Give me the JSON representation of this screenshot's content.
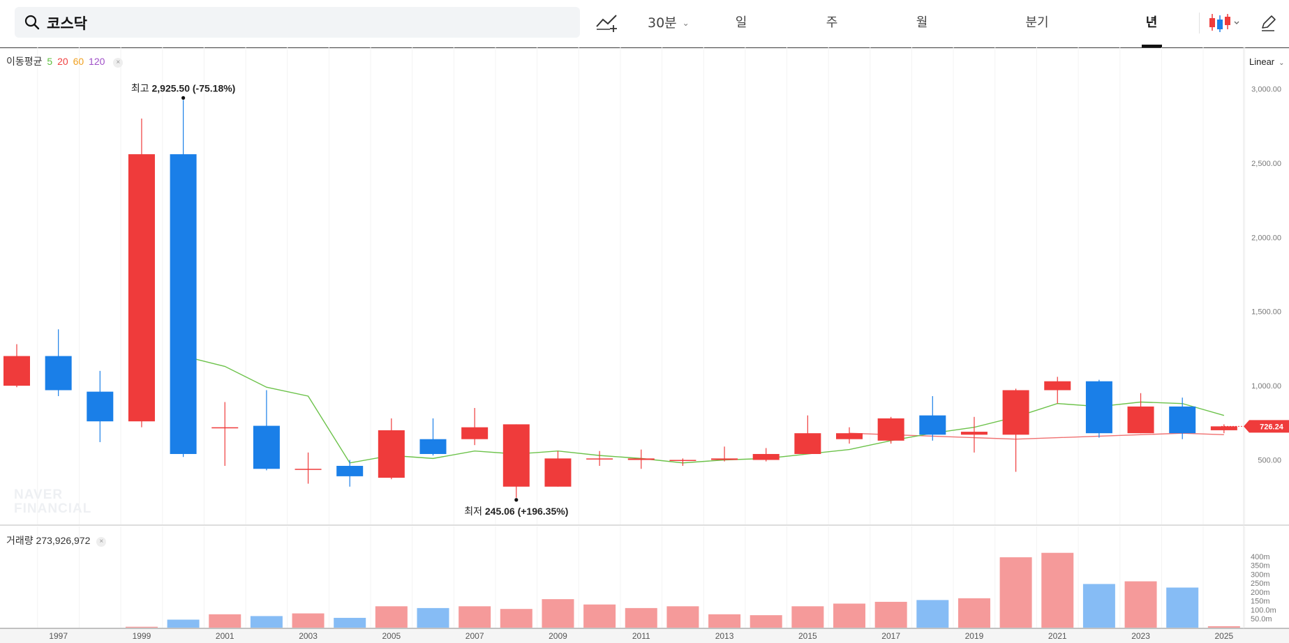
{
  "search": {
    "value": "코스닥",
    "placeholder": ""
  },
  "toolbar": {
    "interval": "30분",
    "tabs": [
      "일",
      "주",
      "월",
      "분기",
      "년"
    ],
    "active_tab": "년",
    "indicator_icon": "indicator-add-icon",
    "chart_type_icon": "candlestick-icon",
    "draw_icon": "pencil-icon"
  },
  "legend": {
    "ma_label": "이동평균",
    "ma_periods": [
      "5",
      "20",
      "60",
      "120"
    ],
    "ma_colors": [
      "#5bbf3e",
      "#f04040",
      "#f0a020",
      "#a050c8"
    ],
    "volume_label": "거래량 273,926,972",
    "close_symbol": "×"
  },
  "scale": {
    "label": "Linear"
  },
  "watermark": {
    "line1": "NAVER",
    "line2": "FINANCIAL"
  },
  "colors": {
    "up": "#ef3b3b",
    "down": "#1a7fe8",
    "up_vol": "#f59a9a",
    "down_vol": "#86bcf5",
    "ma5": "#6cc24a",
    "ma20": "#f07070"
  },
  "chart_data": {
    "type": "candlestick",
    "y_axis_ticks": [
      "3,000.00",
      "2,500.00",
      "2,000.00",
      "1,500.00",
      "1,000.00",
      "500.00"
    ],
    "y_tick_values": [
      3000,
      2500,
      2000,
      1500,
      1000,
      500
    ],
    "ylim": [
      150,
      3200
    ],
    "years": [
      1996,
      1997,
      1998,
      1999,
      2000,
      2001,
      2002,
      2003,
      2004,
      2005,
      2006,
      2007,
      2008,
      2009,
      2010,
      2011,
      2012,
      2013,
      2014,
      2015,
      2016,
      2017,
      2018,
      2019,
      2020,
      2021,
      2022,
      2023,
      2024,
      2025
    ],
    "x_tick_labels": [
      "1997",
      "1999",
      "2001",
      "2003",
      "2005",
      "2007",
      "2009",
      "2011",
      "2013",
      "2015",
      "2017",
      "2019",
      "2021",
      "2023",
      "2025"
    ],
    "open": [
      1000,
      1200,
      960,
      760,
      2560,
      720,
      730,
      440,
      460,
      380,
      640,
      640,
      320,
      320,
      510,
      500,
      500,
      500,
      500,
      540,
      640,
      630,
      800,
      670,
      670,
      970,
      1030,
      680,
      860,
      700
    ],
    "high": [
      1280,
      1380,
      1100,
      2800,
      2925.5,
      890,
      970,
      550,
      500,
      780,
      780,
      850,
      740,
      560,
      560,
      570,
      510,
      590,
      580,
      800,
      720,
      790,
      930,
      790,
      980,
      1060,
      1040,
      950,
      920,
      740
    ],
    "low": [
      990,
      930,
      620,
      720,
      520,
      460,
      430,
      340,
      320,
      370,
      530,
      600,
      245.06,
      320,
      460,
      440,
      460,
      490,
      490,
      540,
      610,
      610,
      630,
      550,
      420,
      880,
      650,
      680,
      640,
      680
    ],
    "close": [
      1200,
      970,
      760,
      2560,
      540,
      720,
      440,
      440,
      390,
      700,
      540,
      720,
      740,
      510,
      510,
      510,
      500,
      510,
      540,
      680,
      680,
      780,
      670,
      690,
      970,
      1030,
      680,
      860,
      680,
      726.24
    ],
    "ma5": [
      null,
      null,
      null,
      null,
      1200,
      1130,
      990,
      930,
      480,
      530,
      510,
      560,
      540,
      560,
      530,
      510,
      480,
      500,
      510,
      540,
      570,
      630,
      680,
      720,
      790,
      880,
      860,
      890,
      880,
      800
    ],
    "ma20": [
      null,
      null,
      null,
      null,
      null,
      null,
      null,
      null,
      null,
      null,
      null,
      null,
      null,
      null,
      null,
      null,
      null,
      null,
      null,
      null,
      680,
      670,
      660,
      650,
      640,
      650,
      660,
      670,
      680,
      670
    ],
    "volume_m": [
      0,
      0,
      0,
      5,
      45,
      75,
      65,
      80,
      55,
      120,
      110,
      120,
      105,
      160,
      130,
      110,
      120,
      75,
      70,
      120,
      135,
      145,
      155,
      165,
      395,
      420,
      245,
      260,
      225,
      8
    ],
    "volume_axis_ticks": [
      "400m",
      "350m",
      "300m",
      "250m",
      "200m",
      "150m",
      "100.0m",
      "50.0m"
    ],
    "volume_tick_values": [
      400,
      350,
      300,
      250,
      200,
      150,
      100,
      50
    ],
    "current_price": "726.24",
    "high_annotation": {
      "prefix": "최고",
      "text": "2,925.50 (-75.18%)",
      "year": 2000,
      "value": 2925.5
    },
    "low_annotation": {
      "prefix": "최저",
      "text": "245.06 (+196.35%)",
      "year": 2008,
      "value": 245.06
    }
  }
}
